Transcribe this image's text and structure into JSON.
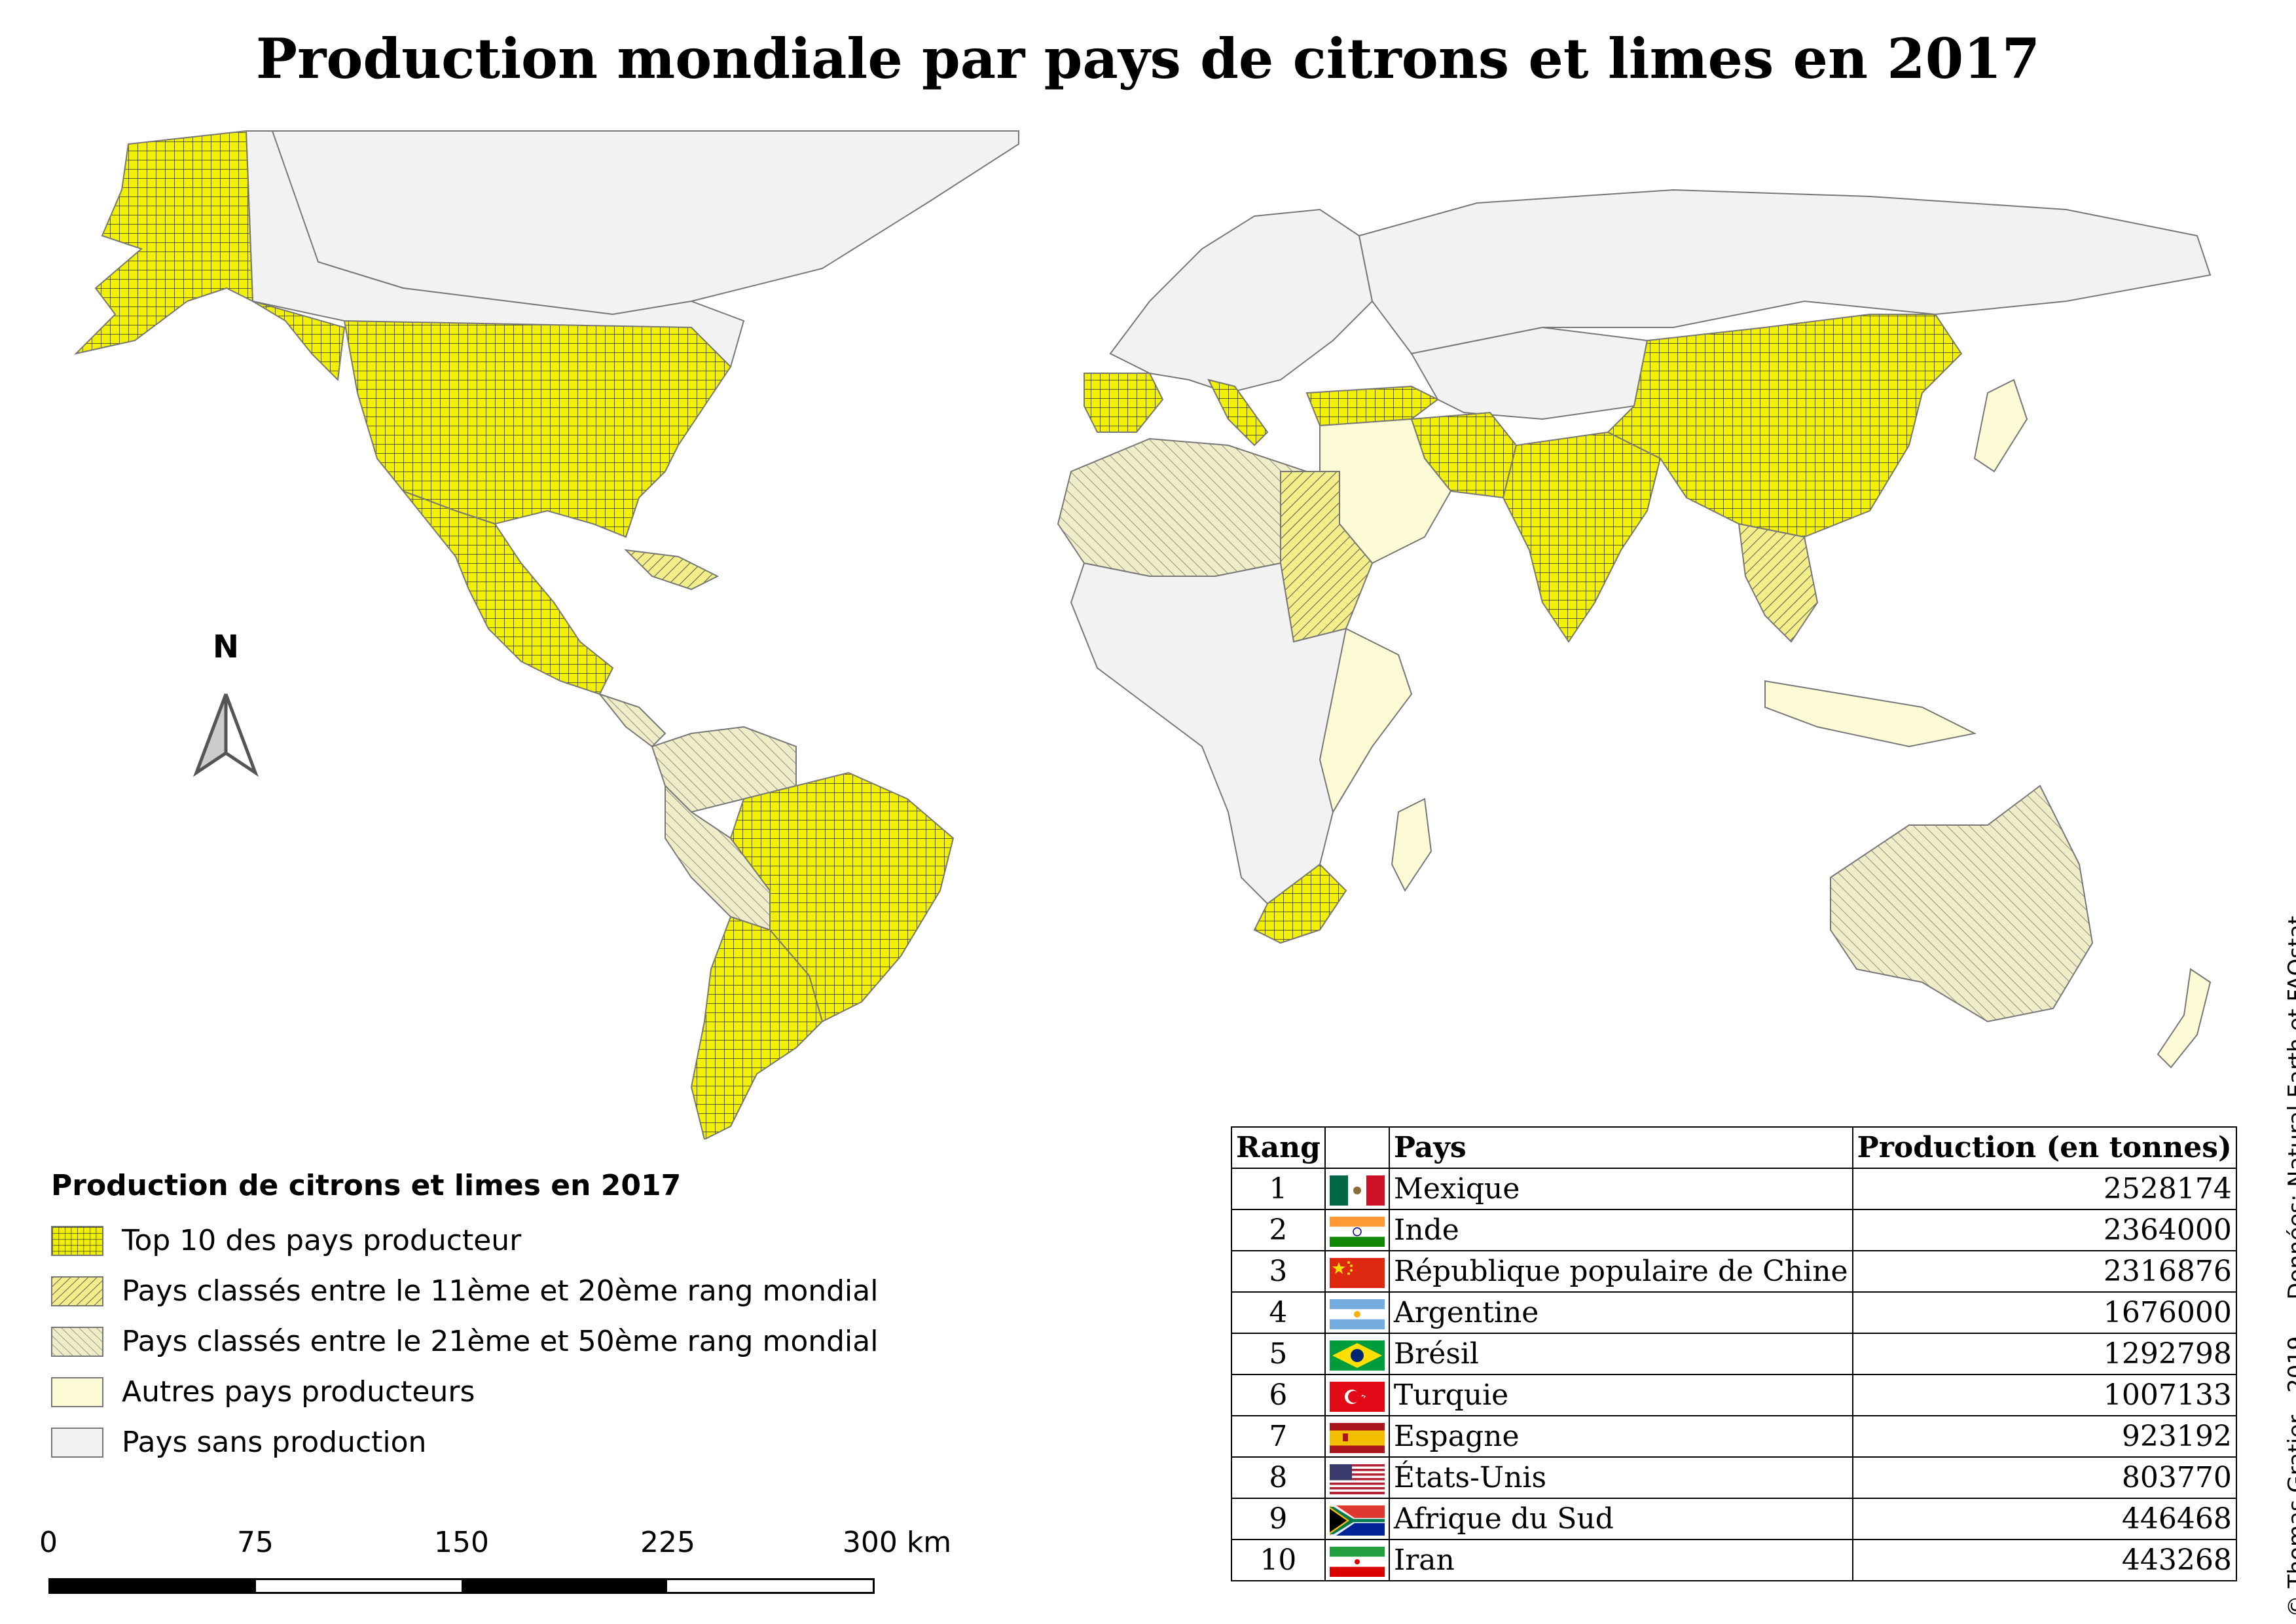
{
  "title": "Production mondiale par pays de citrons et limes en 2017",
  "north_label": "N",
  "colors": {
    "top10": "#f0f000",
    "rank11_20": "#f3ee8a",
    "rank21_50": "#efedc7",
    "other_producers": "#fdfbd6",
    "no_production": "#f2f2f2",
    "border": "#777777"
  },
  "legend": {
    "title": "Production de citrons et limes en 2017",
    "items": [
      {
        "label": "Top 10 des pays producteur",
        "pattern": "grid"
      },
      {
        "label": "Pays classés entre le 11ème et 20ème rang mondial",
        "pattern": "hatch-dense"
      },
      {
        "label": "Pays classés entre le 21ème et 50ème rang mondial",
        "pattern": "hatch-light"
      },
      {
        "label": "Autres pays producteurs",
        "pattern": "pale"
      },
      {
        "label": "Pays sans production",
        "pattern": "gray"
      }
    ]
  },
  "scale": {
    "labels": [
      "0",
      "75",
      "150",
      "225",
      "300 km"
    ]
  },
  "table": {
    "headers": {
      "rank": "Rang",
      "flag": "",
      "country": "Pays",
      "production": "Production (en tonnes)"
    },
    "rows": [
      {
        "rank": "1",
        "flag": "mexico-flag",
        "country": "Mexique",
        "production": "2528174"
      },
      {
        "rank": "2",
        "flag": "india-flag",
        "country": "Inde",
        "production": "2364000"
      },
      {
        "rank": "3",
        "flag": "china-flag",
        "country": "République populaire de Chine",
        "production": "2316876"
      },
      {
        "rank": "4",
        "flag": "argentina-flag",
        "country": "Argentine",
        "production": "1676000"
      },
      {
        "rank": "5",
        "flag": "brazil-flag",
        "country": "Brésil",
        "production": "1292798"
      },
      {
        "rank": "6",
        "flag": "turkey-flag",
        "country": "Turquie",
        "production": "1007133"
      },
      {
        "rank": "7",
        "flag": "spain-flag",
        "country": "Espagne",
        "production": "923192"
      },
      {
        "rank": "8",
        "flag": "usa-flag",
        "country": "États-Unis",
        "production": "803770"
      },
      {
        "rank": "9",
        "flag": "south-africa-flag",
        "country": "Afrique du Sud",
        "production": "446468"
      },
      {
        "rank": "10",
        "flag": "iran-flag",
        "country": "Iran",
        "production": "443268"
      }
    ]
  },
  "credit": "© Thomas Gratier - 2019 — Données: Natural Earth et FAOstat"
}
